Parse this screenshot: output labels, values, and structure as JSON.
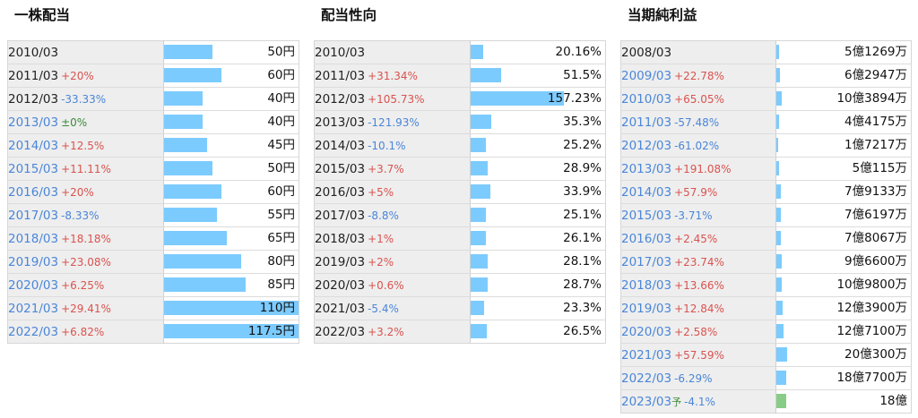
{
  "panels": [
    {
      "title": "一株配当",
      "rows": [
        {
          "year": "2010/03",
          "change": "",
          "dir": "",
          "link": false,
          "value": "50円",
          "ratio": 0.355
        },
        {
          "year": "2011/03",
          "change": "+20%",
          "dir": "pos",
          "link": false,
          "value": "60円",
          "ratio": 0.426
        },
        {
          "year": "2012/03",
          "change": "-33.33%",
          "dir": "neg",
          "link": false,
          "value": "40円",
          "ratio": 0.284
        },
        {
          "year": "2013/03",
          "change": "±0%",
          "dir": "zero",
          "link": true,
          "value": "40円",
          "ratio": 0.284
        },
        {
          "year": "2014/03",
          "change": "+12.5%",
          "dir": "pos",
          "link": true,
          "value": "45円",
          "ratio": 0.319
        },
        {
          "year": "2015/03",
          "change": "+11.11%",
          "dir": "pos",
          "link": true,
          "value": "50円",
          "ratio": 0.355
        },
        {
          "year": "2016/03",
          "change": "+20%",
          "dir": "pos",
          "link": true,
          "value": "60円",
          "ratio": 0.426
        },
        {
          "year": "2017/03",
          "change": "-8.33%",
          "dir": "neg",
          "link": true,
          "value": "55円",
          "ratio": 0.39
        },
        {
          "year": "2018/03",
          "change": "+18.18%",
          "dir": "pos",
          "link": true,
          "value": "65円",
          "ratio": 0.461
        },
        {
          "year": "2019/03",
          "change": "+23.08%",
          "dir": "pos",
          "link": true,
          "value": "80円",
          "ratio": 0.567
        },
        {
          "year": "2020/03",
          "change": "+6.25%",
          "dir": "pos",
          "link": true,
          "value": "85円",
          "ratio": 0.603
        },
        {
          "year": "2021/03",
          "change": "+29.41%",
          "dir": "pos",
          "link": true,
          "value": "110円",
          "ratio": 1.0
        },
        {
          "year": "2022/03",
          "change": "+6.82%",
          "dir": "pos",
          "link": true,
          "value": "117.5円",
          "ratio": 1.0
        }
      ]
    },
    {
      "title": "配当性向",
      "rows": [
        {
          "year": "2010/03",
          "change": "",
          "dir": "",
          "link": false,
          "value": "20.16%",
          "ratio": 0.09
        },
        {
          "year": "2011/03",
          "change": "+31.34%",
          "dir": "pos",
          "link": false,
          "value": "51.5%",
          "ratio": 0.227
        },
        {
          "year": "2012/03",
          "change": "+105.73%",
          "dir": "pos",
          "link": false,
          "value": "157.23%",
          "ratio": 0.692
        },
        {
          "year": "2013/03",
          "change": "-121.93%",
          "dir": "neg",
          "link": false,
          "value": "35.3%",
          "ratio": 0.155
        },
        {
          "year": "2014/03",
          "change": "-10.1%",
          "dir": "neg",
          "link": false,
          "value": "25.2%",
          "ratio": 0.111
        },
        {
          "year": "2015/03",
          "change": "+3.7%",
          "dir": "pos",
          "link": false,
          "value": "28.9%",
          "ratio": 0.127
        },
        {
          "year": "2016/03",
          "change": "+5%",
          "dir": "pos",
          "link": false,
          "value": "33.9%",
          "ratio": 0.149
        },
        {
          "year": "2017/03",
          "change": "-8.8%",
          "dir": "neg",
          "link": false,
          "value": "25.1%",
          "ratio": 0.11
        },
        {
          "year": "2018/03",
          "change": "+1%",
          "dir": "pos",
          "link": false,
          "value": "26.1%",
          "ratio": 0.115
        },
        {
          "year": "2019/03",
          "change": "+2%",
          "dir": "pos",
          "link": false,
          "value": "28.1%",
          "ratio": 0.124
        },
        {
          "year": "2020/03",
          "change": "+0.6%",
          "dir": "pos",
          "link": false,
          "value": "28.7%",
          "ratio": 0.126
        },
        {
          "year": "2021/03",
          "change": "-5.4%",
          "dir": "neg",
          "link": false,
          "value": "23.3%",
          "ratio": 0.102
        },
        {
          "year": "2022/03",
          "change": "+3.2%",
          "dir": "pos",
          "link": false,
          "value": "26.5%",
          "ratio": 0.117
        }
      ]
    },
    {
      "title": "当期純利益",
      "rows": [
        {
          "year": "2008/03",
          "change": "",
          "dir": "",
          "link": false,
          "value": "5億1269万",
          "ratio": 0.02
        },
        {
          "year": "2009/03",
          "change": "+22.78%",
          "dir": "pos",
          "link": true,
          "value": "6億2947万",
          "ratio": 0.025
        },
        {
          "year": "2010/03",
          "change": "+65.05%",
          "dir": "pos",
          "link": true,
          "value": "10億3894万",
          "ratio": 0.04
        },
        {
          "year": "2011/03",
          "change": "-57.48%",
          "dir": "neg",
          "link": true,
          "value": "4億4175万",
          "ratio": 0.017
        },
        {
          "year": "2012/03",
          "change": "-61.02%",
          "dir": "neg",
          "link": true,
          "value": "1億7217万",
          "ratio": 0.007
        },
        {
          "year": "2013/03",
          "change": "+191.08%",
          "dir": "pos",
          "link": true,
          "value": "5億115万",
          "ratio": 0.02
        },
        {
          "year": "2014/03",
          "change": "+57.9%",
          "dir": "pos",
          "link": true,
          "value": "7億9133万",
          "ratio": 0.031
        },
        {
          "year": "2015/03",
          "change": "-3.71%",
          "dir": "neg",
          "link": true,
          "value": "7億6197万",
          "ratio": 0.03
        },
        {
          "year": "2016/03",
          "change": "+2.45%",
          "dir": "pos",
          "link": true,
          "value": "7億8067万",
          "ratio": 0.031
        },
        {
          "year": "2017/03",
          "change": "+23.74%",
          "dir": "pos",
          "link": true,
          "value": "9億6600万",
          "ratio": 0.038
        },
        {
          "year": "2018/03",
          "change": "+13.66%",
          "dir": "pos",
          "link": true,
          "value": "10億9800万",
          "ratio": 0.043
        },
        {
          "year": "2019/03",
          "change": "+12.84%",
          "dir": "pos",
          "link": true,
          "value": "12億3900万",
          "ratio": 0.049
        },
        {
          "year": "2020/03",
          "change": "+2.58%",
          "dir": "pos",
          "link": true,
          "value": "12億7100万",
          "ratio": 0.05
        },
        {
          "year": "2021/03",
          "change": "+57.59%",
          "dir": "pos",
          "link": true,
          "value": "20億300万",
          "ratio": 0.079
        },
        {
          "year": "2022/03",
          "change": "-6.29%",
          "dir": "neg",
          "link": true,
          "value": "18億7700万",
          "ratio": 0.074
        },
        {
          "year": "2023/03",
          "forecast_mark": "予",
          "change": "-4.1%",
          "dir": "neg",
          "link": true,
          "value": "18億",
          "ratio": 0.071,
          "estimate": true
        }
      ]
    }
  ]
}
